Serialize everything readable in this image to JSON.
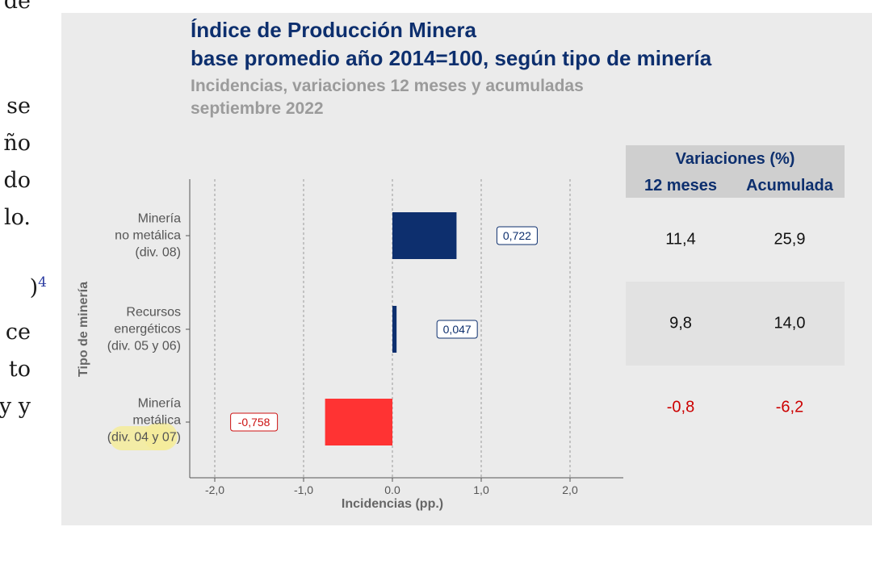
{
  "background_text": {
    "lines": [
      "de",
      "se",
      "ño",
      "do",
      "lo.",
      ")",
      "ce",
      "to",
      "y y"
    ],
    "footnote_mark": "4"
  },
  "chart_data": {
    "type": "bar",
    "orientation": "horizontal",
    "title": "Índice de Producción Minera",
    "title_line2": "base promedio año 2014=100, según tipo de minería",
    "subtitle": "Incidencias, variaciones 12 meses y acumuladas",
    "subtitle_line2": "septiembre 2022",
    "xlabel": "Incidencias (pp.)",
    "ylabel": "Tipo de minería",
    "xlim": [
      -2.3,
      2.6
    ],
    "xticks": [
      -2.0,
      -1.0,
      0.0,
      1.0,
      2.0
    ],
    "xtick_labels": [
      "-2,0",
      "-1,0",
      "0.0",
      "1,0",
      "2,0"
    ],
    "grid": "vertical dashed",
    "categories": [
      {
        "lines": [
          "Minería",
          "no metálica",
          "(div. 08)"
        ]
      },
      {
        "lines": [
          "Recursos",
          "energéticos",
          "(div. 05 y 06)"
        ]
      },
      {
        "lines": [
          "Minería",
          "metálica",
          "(div. 04 y 07)"
        ]
      }
    ],
    "values": [
      0.722,
      0.047,
      -0.758
    ],
    "value_labels": [
      "0,722",
      "0,047",
      "-0,758"
    ],
    "colors": {
      "positive": "#0d2f6e",
      "negative": "#ff3333",
      "positive_label": "#0d2f6e",
      "negative_label": "#cc1111"
    }
  },
  "table": {
    "header": "Variaciones (%)",
    "columns": [
      "12 meses",
      "Acumulada"
    ],
    "rows": [
      {
        "values": [
          "11,4",
          "25,9"
        ],
        "color": "#111111"
      },
      {
        "values": [
          "9,8",
          "14,0"
        ],
        "color": "#111111"
      },
      {
        "values": [
          "-0,8",
          "-6,2"
        ],
        "color": "#cc0000"
      }
    ]
  }
}
